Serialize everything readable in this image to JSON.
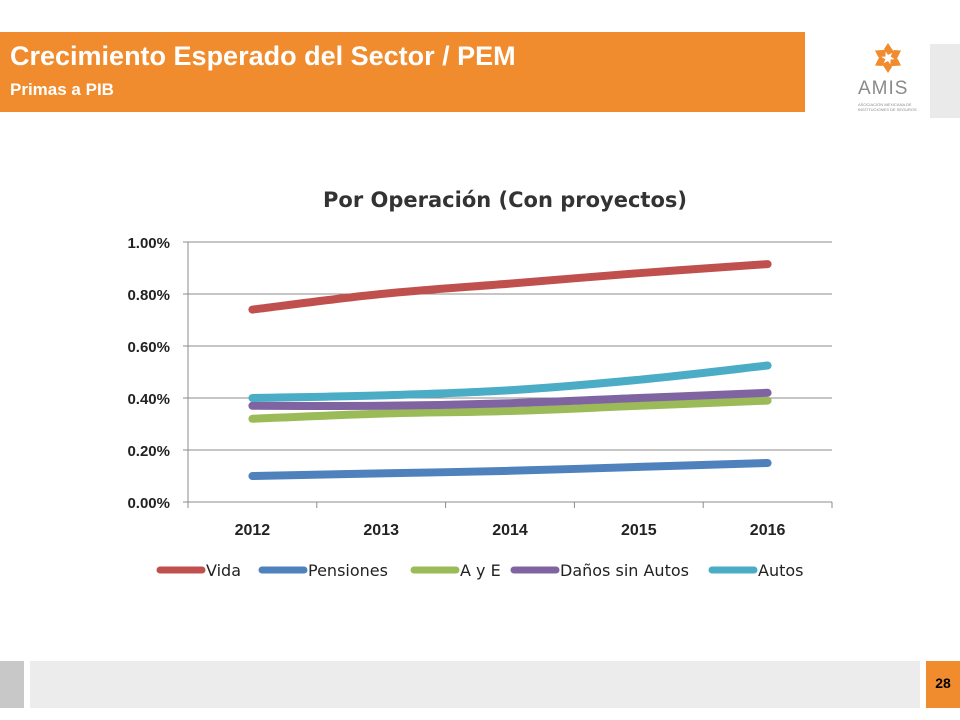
{
  "header": {
    "title": "Crecimiento Esperado del Sector / PEM",
    "subtitle": "Primas a PIB"
  },
  "logo": {
    "name": "AMIS",
    "tagline": "ASOCIACIÓN MEXICANA DE INSTITUCIONES DE SEGUROS"
  },
  "footer": {
    "page_number": "28"
  },
  "colors": {
    "accent": "#f08c2e",
    "Vida": "#c0504d",
    "Pensiones": "#4f81bd",
    "A y E": "#9bbb59",
    "Daños sin Autos": "#8064a2",
    "Autos": "#4bacc6"
  },
  "chart_data": {
    "type": "line",
    "title": "Por Operación (Con proyectos)",
    "xlabel": "",
    "ylabel": "",
    "categories": [
      "2012",
      "2013",
      "2014",
      "2015",
      "2016"
    ],
    "y_ticks": [
      "0.00%",
      "0.20%",
      "0.40%",
      "0.60%",
      "0.80%",
      "1.00%"
    ],
    "ylim": [
      0,
      1.0
    ],
    "grid": true,
    "legend_position": "bottom",
    "series": [
      {
        "name": "Vida",
        "values": [
          0.74,
          0.8,
          0.84,
          0.88,
          0.915
        ]
      },
      {
        "name": "Pensiones",
        "values": [
          0.1,
          0.11,
          0.12,
          0.135,
          0.15
        ]
      },
      {
        "name": "A y E",
        "values": [
          0.32,
          0.34,
          0.35,
          0.37,
          0.39
        ]
      },
      {
        "name": "Daños sin Autos",
        "values": [
          0.37,
          0.37,
          0.38,
          0.4,
          0.42
        ]
      },
      {
        "name": "Autos",
        "values": [
          0.4,
          0.41,
          0.43,
          0.47,
          0.525
        ]
      }
    ]
  }
}
